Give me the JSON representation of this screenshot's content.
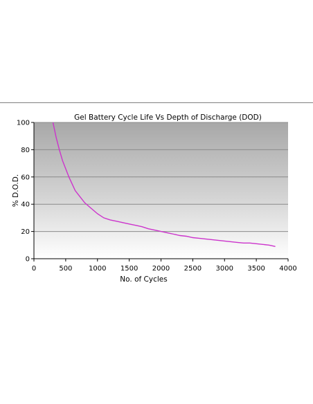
{
  "chart_data": {
    "type": "line",
    "title": "Gel Battery Cycle Life Vs Depth of Discharge (DOD)",
    "xlabel": "No. of Cycles",
    "ylabel": "% D.O.D.",
    "xlim": [
      0,
      4000
    ],
    "ylim": [
      0,
      100
    ],
    "xticks": [
      0,
      500,
      1000,
      1500,
      2000,
      2500,
      3000,
      3500,
      4000
    ],
    "yticks": [
      0,
      20,
      40,
      60,
      80,
      100
    ],
    "grid": true,
    "legend": "none",
    "line_color": "#cc33cc",
    "plot_background": "gradient grey to white",
    "series": [
      {
        "x": [
          300,
          350,
          400,
          450,
          500,
          550,
          600,
          650,
          700,
          800,
          900,
          1000,
          1100,
          1200,
          1300,
          1400,
          1500,
          1600,
          1700,
          1800,
          1900,
          2000,
          2100,
          2200,
          2300,
          2400,
          2500,
          2600,
          2700,
          2800,
          2900,
          3000,
          3100,
          3200,
          3300,
          3400,
          3500,
          3600,
          3700,
          3800
        ],
        "values": [
          100,
          89,
          80,
          72,
          66,
          60,
          55,
          50,
          47,
          41,
          37,
          33,
          30,
          28.5,
          27.5,
          26.5,
          25.5,
          24.5,
          23.5,
          22,
          21,
          20,
          19,
          18,
          17,
          16.5,
          15.5,
          15,
          14.5,
          14,
          13.5,
          13,
          12.5,
          12,
          11.5,
          11.5,
          11,
          10.5,
          10,
          9
        ]
      }
    ]
  }
}
